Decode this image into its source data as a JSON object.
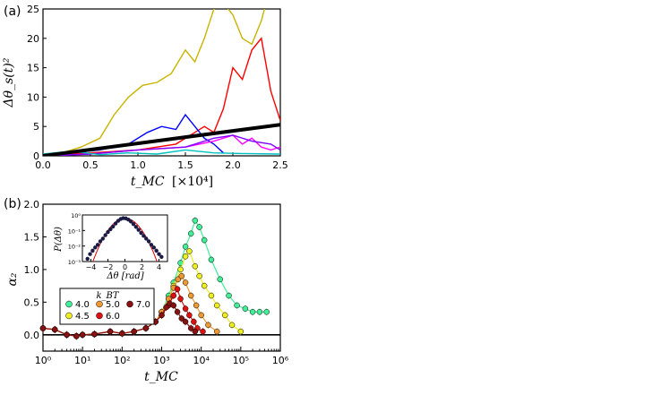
{
  "chart_data": [
    {
      "type": "line",
      "panel_label": "(a)",
      "xlabel": "t_MC",
      "xunit": "[×10⁴]",
      "ylabel": "Δθ_s(t)²",
      "xlim": [
        0,
        2.5
      ],
      "ylim": [
        0,
        25
      ],
      "xticks": [
        "0.0",
        "0.5",
        "1.0",
        "1.5",
        "2.0",
        "2.5"
      ],
      "yticks": [
        "0",
        "5",
        "10",
        "15",
        "20",
        "25"
      ],
      "grid": false,
      "series": [
        {
          "color": "#c8b400",
          "x": [
            0,
            0.2,
            0.4,
            0.6,
            0.75,
            0.9,
            1.05,
            1.2,
            1.35,
            1.5,
            1.6,
            1.7,
            1.8,
            1.9,
            2.0,
            2.1,
            2.2,
            2.3,
            2.35
          ],
          "y": [
            0,
            0.5,
            1.5,
            3,
            7,
            10,
            12,
            12.5,
            14,
            18,
            16,
            20,
            25,
            26,
            24,
            20,
            19,
            23,
            26
          ]
        },
        {
          "color": "#ff0000",
          "x": [
            0,
            0.5,
            1.0,
            1.4,
            1.6,
            1.7,
            1.8,
            1.9,
            2.0,
            2.1,
            2.2,
            2.3,
            2.4,
            2.5
          ],
          "y": [
            0,
            0.5,
            1,
            2,
            4,
            5,
            4,
            8,
            15,
            13,
            18,
            20,
            11,
            6
          ]
        },
        {
          "color": "#0000ff",
          "x": [
            0,
            0.3,
            0.6,
            0.9,
            1.1,
            1.25,
            1.4,
            1.5,
            1.6,
            1.7,
            1.8,
            1.9
          ],
          "y": [
            0,
            0.5,
            1,
            2,
            4,
            5,
            4.5,
            7,
            5,
            3,
            2,
            0.5
          ]
        },
        {
          "color": "#ff00ff",
          "x": [
            0,
            0.5,
            1.0,
            1.5,
            1.8,
            2.0,
            2.1,
            2.2,
            2.3,
            2.4,
            2.5
          ],
          "y": [
            0,
            0.3,
            1,
            1.5,
            2.5,
            3.5,
            2,
            3,
            1.5,
            1,
            1.5
          ]
        },
        {
          "color": "#8000ff",
          "x": [
            0,
            0.5,
            1.0,
            1.5,
            1.8,
            2.0,
            2.2,
            2.4,
            2.5
          ],
          "y": [
            0,
            0.3,
            1,
            1.5,
            3,
            3.5,
            2.5,
            2,
            1
          ]
        },
        {
          "color": "#00c0c0",
          "x": [
            0,
            0.3,
            0.6,
            0.9,
            1.2,
            1.5,
            1.8,
            2.1,
            2.5
          ],
          "y": [
            0.3,
            0.8,
            0.2,
            0.5,
            0.3,
            1,
            0.5,
            0.4,
            0.3
          ]
        },
        {
          "color": "#000000",
          "x": [
            0,
            2.5
          ],
          "y": [
            0,
            5.3
          ]
        }
      ]
    },
    {
      "type": "line",
      "panel_label": "(b)",
      "xlabel": "t_MC",
      "ylabel": "α₂",
      "xscale": "log",
      "xlim": [
        1,
        1000000
      ],
      "ylim": [
        -0.25,
        2.0
      ],
      "xticks": [
        "10⁰",
        "10¹",
        "10²",
        "10³",
        "10⁴",
        "10⁵",
        "10⁶"
      ],
      "yticks": [
        "0.0",
        "0.5",
        "1.0",
        "1.5",
        "2.0"
      ],
      "legend": {
        "title": "k_BT",
        "placement": "lower-left"
      },
      "series": [
        {
          "name": "4.0",
          "color": "#44ee99",
          "x": [
            1,
            2,
            4,
            7,
            10,
            20,
            50,
            100,
            200,
            400,
            700,
            1000,
            1500,
            2000,
            3000,
            4000,
            5500,
            7000,
            9000,
            12000,
            18000,
            30000,
            50000,
            80000,
            130000,
            200000,
            300000,
            450000
          ],
          "y": [
            0.1,
            0.08,
            0.0,
            -0.02,
            0.0,
            0.01,
            0.05,
            0.02,
            0.05,
            0.1,
            0.2,
            0.35,
            0.6,
            0.8,
            1.1,
            1.35,
            1.55,
            1.75,
            1.65,
            1.45,
            1.15,
            0.85,
            0.6,
            0.45,
            0.4,
            0.35,
            0.35,
            0.35
          ]
        },
        {
          "name": "4.5",
          "color": "#eeee22",
          "x": [
            1,
            2,
            4,
            7,
            10,
            20,
            50,
            100,
            200,
            400,
            700,
            1000,
            1500,
            2000,
            3000,
            4000,
            5000,
            7000,
            9000,
            12000,
            18000,
            25000,
            40000,
            60000,
            100000
          ],
          "y": [
            0.1,
            0.08,
            0.0,
            -0.02,
            0.0,
            0.01,
            0.05,
            0.02,
            0.05,
            0.1,
            0.2,
            0.35,
            0.55,
            0.75,
            1.0,
            1.2,
            1.28,
            1.05,
            0.9,
            0.75,
            0.6,
            0.45,
            0.3,
            0.15,
            0.05
          ]
        },
        {
          "name": "5.0",
          "color": "#ee9933",
          "x": [
            1,
            2,
            4,
            7,
            10,
            20,
            50,
            100,
            200,
            400,
            700,
            1000,
            1500,
            2000,
            2600,
            3200,
            4000,
            5500,
            7500,
            10000,
            15000,
            25000
          ],
          "y": [
            0.1,
            0.08,
            0.0,
            -0.02,
            0.0,
            0.01,
            0.05,
            0.02,
            0.05,
            0.1,
            0.2,
            0.35,
            0.55,
            0.72,
            0.85,
            0.9,
            0.8,
            0.6,
            0.45,
            0.3,
            0.15,
            0.05
          ]
        },
        {
          "name": "6.0",
          "color": "#dd1111",
          "x": [
            1,
            2,
            4,
            7,
            10,
            20,
            50,
            100,
            200,
            400,
            700,
            1000,
            1500,
            2000,
            2500,
            3000,
            4000,
            5000,
            6500,
            8000,
            11000
          ],
          "y": [
            0.1,
            0.08,
            0.0,
            -0.02,
            0.0,
            0.01,
            0.05,
            0.02,
            0.05,
            0.1,
            0.2,
            0.3,
            0.45,
            0.6,
            0.7,
            0.55,
            0.4,
            0.3,
            0.2,
            0.1,
            0.05
          ]
        },
        {
          "name": "7.0",
          "color": "#881111",
          "x": [
            1,
            2,
            4,
            7,
            10,
            20,
            50,
            100,
            200,
            400,
            700,
            1000,
            1300,
            1600,
            2000,
            2500,
            3200,
            4000,
            5500,
            7000
          ],
          "y": [
            0.1,
            0.08,
            0.0,
            -0.02,
            0.0,
            0.01,
            0.05,
            0.02,
            0.05,
            0.1,
            0.2,
            0.3,
            0.42,
            0.48,
            0.45,
            0.35,
            0.25,
            0.2,
            0.1,
            0.05
          ]
        }
      ]
    },
    {
      "type": "scatter",
      "inset": true,
      "xlabel": "Δθ [rad]",
      "ylabel": "P(Δθ)",
      "yscale": "log",
      "xlim": [
        -5,
        5
      ],
      "ylim": [
        0.001,
        1
      ],
      "xticks": [
        "−4",
        "−2",
        "0",
        "2",
        "4"
      ],
      "yticks": [
        "10⁰",
        "10⁻¹",
        "10⁻²",
        "10⁻³"
      ],
      "points": {
        "color": "#1a1a44",
        "x": [
          -4.4,
          -4.1,
          -3.8,
          -3.5,
          -3.2,
          -2.9,
          -2.6,
          -2.3,
          -2.0,
          -1.7,
          -1.4,
          -1.1,
          -0.8,
          -0.5,
          -0.2,
          0.1,
          0.4,
          0.7,
          1.0,
          1.3,
          1.6,
          1.9,
          2.2,
          2.5,
          2.8,
          3.1,
          3.4,
          3.7,
          4.0,
          4.3
        ],
        "y": [
          0.0015,
          0.003,
          0.005,
          0.008,
          0.012,
          0.02,
          0.03,
          0.05,
          0.08,
          0.12,
          0.18,
          0.28,
          0.42,
          0.55,
          0.62,
          0.6,
          0.5,
          0.38,
          0.26,
          0.17,
          0.11,
          0.07,
          0.045,
          0.03,
          0.02,
          0.012,
          0.008,
          0.005,
          0.003,
          0.002
        ]
      },
      "gaussian_fit": {
        "color": "#dd0000",
        "sigma": 1.05,
        "amplitude": 0.62
      }
    }
  ]
}
